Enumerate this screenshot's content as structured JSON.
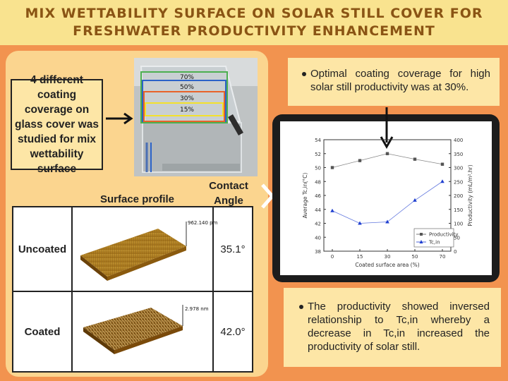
{
  "header": {
    "title_line1": "Mix wettability surface on solar still cover for",
    "title_line2": "freshwater productivity enhancement"
  },
  "description": "4 different coating coverage on glass cover was studied for mix wettability surface",
  "photo": {
    "coverage_labels": [
      "70%",
      "50%",
      "30%",
      "15%"
    ],
    "colors": [
      "#4caf50",
      "#2c63c8",
      "#e8632a",
      "#f3e12b"
    ]
  },
  "surface_table": {
    "surface_profile_label": "Surface profile",
    "contact_angle_label": "Contact Angle",
    "rows": [
      {
        "label": "Uncoated",
        "scale": "962.140 pm",
        "contact_angle": "35.1°"
      },
      {
        "label": "Coated",
        "scale": "2.978 nm",
        "contact_angle": "42.0°"
      }
    ]
  },
  "notes": {
    "optimal": "Optimal coating coverage for high solar still productivity was at 30%.",
    "relationship": "The productivity showed inversed relationship to Tc,in whereby a decrease in Tc,in increased the productivity of solar still."
  },
  "chart_data": {
    "type": "line",
    "x": [
      0,
      15,
      30,
      50,
      70
    ],
    "xlabel": "Coated surface area (%)",
    "ylabel_left": "Average Tc,in(°C)",
    "ylabel_right": "Productivity (mL/m².hr)",
    "y_left_lim": [
      38,
      54
    ],
    "y_left_ticks": [
      38,
      40,
      42,
      44,
      46,
      48,
      50,
      52,
      54
    ],
    "y_right_lim": [
      0,
      400
    ],
    "y_right_ticks": [
      0,
      50,
      100,
      150,
      200,
      250,
      300,
      350,
      400
    ],
    "series": [
      {
        "name": "Productivity",
        "axis": "right",
        "marker": "square",
        "color": "#555555",
        "values": [
          300,
          325,
          350,
          330,
          312
        ]
      },
      {
        "name": "Tc,in",
        "axis": "left",
        "marker": "triangle",
        "color": "#1f3fd0",
        "values": [
          43.8,
          42.0,
          42.2,
          45.3,
          48.0
        ]
      }
    ],
    "legend": "bottom-right",
    "grid": false
  }
}
